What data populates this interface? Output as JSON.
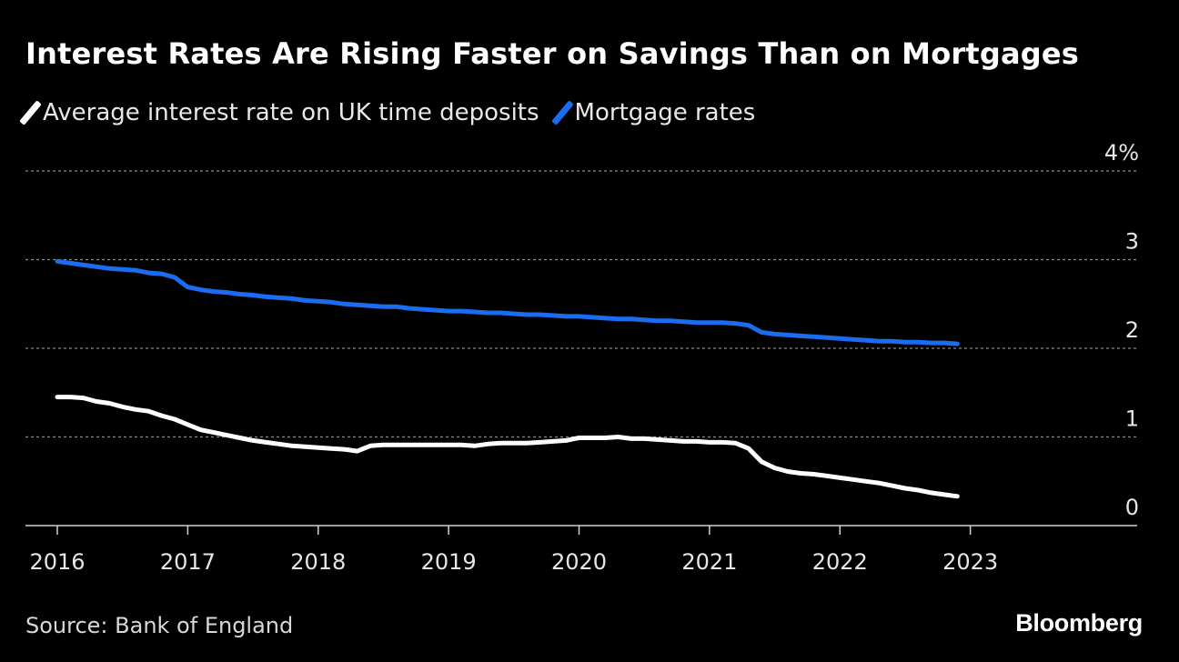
{
  "chart_data": {
    "type": "line",
    "title": "Interest Rates Are Rising Faster on Savings Than on Mortgages",
    "xlabel": "",
    "ylabel": "",
    "unit": "%",
    "ylim": [
      0,
      4
    ],
    "y_ticks": [
      {
        "value": 0,
        "label": "0"
      },
      {
        "value": 1,
        "label": "1"
      },
      {
        "value": 2,
        "label": "2"
      },
      {
        "value": 3,
        "label": "3"
      },
      {
        "value": 4,
        "label": "4%"
      }
    ],
    "xlim": [
      2016,
      2024
    ],
    "x_ticks": [
      {
        "value": 2016,
        "label": "2016"
      },
      {
        "value": 2017,
        "label": "2017"
      },
      {
        "value": 2018,
        "label": "2018"
      },
      {
        "value": 2019,
        "label": "2019"
      },
      {
        "value": 2020,
        "label": "2020"
      },
      {
        "value": 2021,
        "label": "2021"
      },
      {
        "value": 2022,
        "label": "2022"
      },
      {
        "value": 2023,
        "label": "2023"
      }
    ],
    "grid": true,
    "legend_position": "top-left",
    "series": [
      {
        "name": "Average interest rate on UK time deposits",
        "color": "#ffffff",
        "points": [
          [
            2016.0,
            1.45
          ],
          [
            2016.1,
            1.45
          ],
          [
            2016.2,
            1.44
          ],
          [
            2016.3,
            1.4
          ],
          [
            2016.4,
            1.38
          ],
          [
            2016.5,
            1.34
          ],
          [
            2016.6,
            1.31
          ],
          [
            2016.7,
            1.29
          ],
          [
            2016.8,
            1.24
          ],
          [
            2016.9,
            1.2
          ],
          [
            2017.0,
            1.14
          ],
          [
            2017.1,
            1.08
          ],
          [
            2017.2,
            1.05
          ],
          [
            2017.3,
            1.02
          ],
          [
            2017.4,
            0.99
          ],
          [
            2017.5,
            0.96
          ],
          [
            2017.6,
            0.94
          ],
          [
            2017.7,
            0.92
          ],
          [
            2017.8,
            0.9
          ],
          [
            2017.9,
            0.89
          ],
          [
            2018.0,
            0.88
          ],
          [
            2018.1,
            0.87
          ],
          [
            2018.2,
            0.86
          ],
          [
            2018.3,
            0.84
          ],
          [
            2018.4,
            0.9
          ],
          [
            2018.5,
            0.91
          ],
          [
            2018.6,
            0.91
          ],
          [
            2018.7,
            0.91
          ],
          [
            2018.8,
            0.91
          ],
          [
            2018.9,
            0.91
          ],
          [
            2019.0,
            0.91
          ],
          [
            2019.1,
            0.91
          ],
          [
            2019.2,
            0.9
          ],
          [
            2019.3,
            0.92
          ],
          [
            2019.4,
            0.93
          ],
          [
            2019.5,
            0.93
          ],
          [
            2019.6,
            0.93
          ],
          [
            2019.7,
            0.94
          ],
          [
            2019.8,
            0.95
          ],
          [
            2019.9,
            0.96
          ],
          [
            2020.0,
            0.99
          ],
          [
            2020.1,
            0.99
          ],
          [
            2020.2,
            0.99
          ],
          [
            2020.3,
            1.0
          ],
          [
            2020.4,
            0.98
          ],
          [
            2020.5,
            0.98
          ],
          [
            2020.6,
            0.97
          ],
          [
            2020.7,
            0.96
          ],
          [
            2020.8,
            0.95
          ],
          [
            2020.9,
            0.95
          ],
          [
            2021.0,
            0.94
          ],
          [
            2021.1,
            0.94
          ],
          [
            2021.2,
            0.93
          ],
          [
            2021.3,
            0.87
          ],
          [
            2021.4,
            0.72
          ],
          [
            2021.5,
            0.65
          ],
          [
            2021.6,
            0.61
          ],
          [
            2021.7,
            0.59
          ],
          [
            2021.8,
            0.58
          ],
          [
            2021.9,
            0.56
          ],
          [
            2022.0,
            0.54
          ],
          [
            2022.1,
            0.52
          ],
          [
            2022.2,
            0.5
          ],
          [
            2022.3,
            0.48
          ],
          [
            2022.4,
            0.45
          ],
          [
            2022.5,
            0.42
          ],
          [
            2022.6,
            0.4
          ],
          [
            2022.7,
            0.37
          ],
          [
            2022.8,
            0.35
          ],
          [
            2022.9,
            0.33
          ]
        ]
      },
      {
        "name": "Mortgage rates",
        "color": "#1a6cf0",
        "points": [
          [
            2016.0,
            2.98
          ],
          [
            2016.1,
            2.96
          ],
          [
            2016.2,
            2.94
          ],
          [
            2016.3,
            2.92
          ],
          [
            2016.4,
            2.9
          ],
          [
            2016.5,
            2.89
          ],
          [
            2016.6,
            2.88
          ],
          [
            2016.7,
            2.85
          ],
          [
            2016.8,
            2.84
          ],
          [
            2016.9,
            2.8
          ],
          [
            2017.0,
            2.69
          ],
          [
            2017.1,
            2.66
          ],
          [
            2017.2,
            2.64
          ],
          [
            2017.3,
            2.63
          ],
          [
            2017.4,
            2.61
          ],
          [
            2017.5,
            2.6
          ],
          [
            2017.6,
            2.58
          ],
          [
            2017.7,
            2.57
          ],
          [
            2017.8,
            2.56
          ],
          [
            2017.9,
            2.54
          ],
          [
            2018.0,
            2.53
          ],
          [
            2018.1,
            2.52
          ],
          [
            2018.2,
            2.5
          ],
          [
            2018.3,
            2.49
          ],
          [
            2018.4,
            2.48
          ],
          [
            2018.5,
            2.47
          ],
          [
            2018.6,
            2.47
          ],
          [
            2018.7,
            2.45
          ],
          [
            2018.8,
            2.44
          ],
          [
            2018.9,
            2.43
          ],
          [
            2019.0,
            2.42
          ],
          [
            2019.1,
            2.42
          ],
          [
            2019.2,
            2.41
          ],
          [
            2019.3,
            2.4
          ],
          [
            2019.4,
            2.4
          ],
          [
            2019.5,
            2.39
          ],
          [
            2019.6,
            2.38
          ],
          [
            2019.7,
            2.38
          ],
          [
            2019.8,
            2.37
          ],
          [
            2019.9,
            2.36
          ],
          [
            2020.0,
            2.36
          ],
          [
            2020.1,
            2.35
          ],
          [
            2020.2,
            2.34
          ],
          [
            2020.3,
            2.33
          ],
          [
            2020.4,
            2.33
          ],
          [
            2020.5,
            2.32
          ],
          [
            2020.6,
            2.31
          ],
          [
            2020.7,
            2.31
          ],
          [
            2020.8,
            2.3
          ],
          [
            2020.9,
            2.29
          ],
          [
            2021.0,
            2.29
          ],
          [
            2021.1,
            2.29
          ],
          [
            2021.2,
            2.28
          ],
          [
            2021.3,
            2.26
          ],
          [
            2021.4,
            2.18
          ],
          [
            2021.5,
            2.16
          ],
          [
            2021.6,
            2.15
          ],
          [
            2021.7,
            2.14
          ],
          [
            2021.8,
            2.13
          ],
          [
            2021.9,
            2.12
          ],
          [
            2022.0,
            2.11
          ],
          [
            2022.1,
            2.1
          ],
          [
            2022.2,
            2.09
          ],
          [
            2022.3,
            2.08
          ],
          [
            2022.4,
            2.08
          ],
          [
            2022.5,
            2.07
          ],
          [
            2022.6,
            2.07
          ],
          [
            2022.7,
            2.06
          ],
          [
            2022.8,
            2.06
          ],
          [
            2022.9,
            2.05
          ]
        ]
      }
    ]
  },
  "legend": {
    "items": [
      {
        "label": "Average interest rate on UK time deposits",
        "color": "#ffffff"
      },
      {
        "label": "Mortgage rates",
        "color": "#1a6cf0"
      }
    ]
  },
  "footer": {
    "source": "Source: Bank of England",
    "brand": "Bloomberg"
  }
}
